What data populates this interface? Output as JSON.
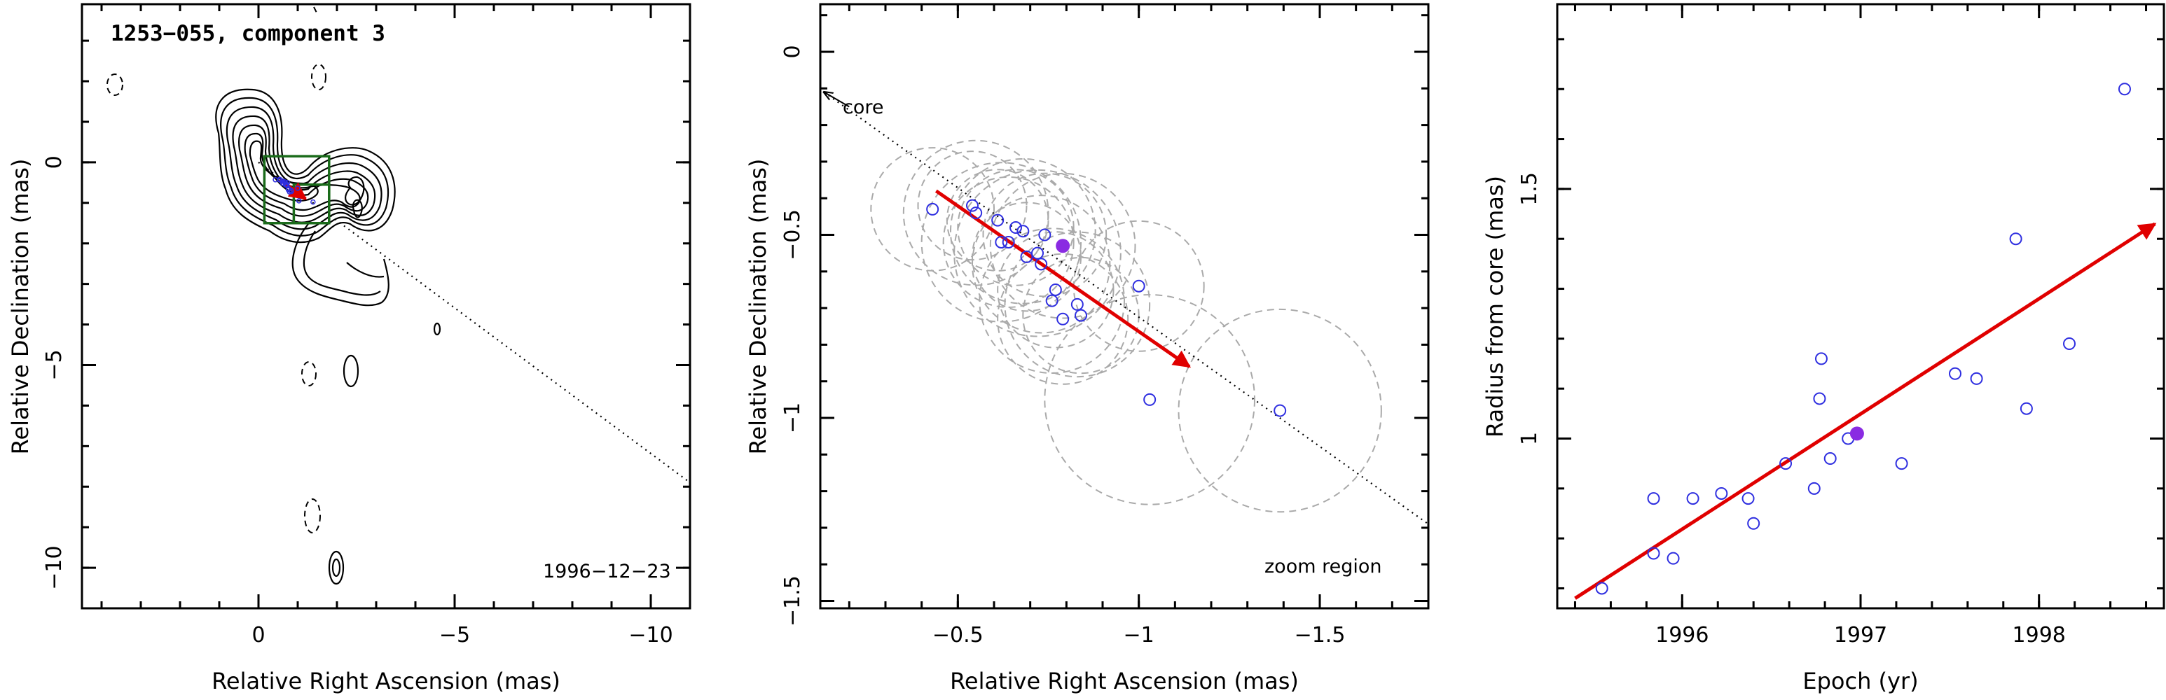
{
  "chart_data": [
    {
      "type": "contour",
      "title": "1253−055, component 3",
      "epoch_label": "1996−12−23",
      "xlabel": "Relative Right Ascension (mas)",
      "ylabel": "Relative Declination (mas)",
      "xlim": [
        4.5,
        -11
      ],
      "ylim": [
        -11,
        3.9
      ],
      "xticks": [
        0,
        -5,
        -10
      ],
      "xtick_labels": [
        "0",
        "−5",
        "−10"
      ],
      "yticks": [
        -10,
        -5,
        0
      ],
      "ytick_labels": [
        "−10",
        "−5",
        "0"
      ],
      "jet_direction_line": {
        "from": [
          0,
          0
        ],
        "to": [
          -11,
          -7.9
        ]
      },
      "component_track": {
        "from": [
          -0.55,
          -0.43
        ],
        "to": [
          -1.2,
          -0.9
        ]
      },
      "zoom_boxes": [
        {
          "x": [
            -0.15,
            -1.8
          ],
          "y": [
            0.15,
            -1.5
          ]
        },
        {
          "x": [
            -0.9,
            -1.8
          ],
          "y": [
            -0.55,
            -1.5
          ]
        }
      ]
    },
    {
      "type": "scatter",
      "xlabel": "Relative Right Ascension (mas)",
      "ylabel": "Relative Declination (mas)",
      "xlim": [
        -0.12,
        -1.8
      ],
      "ylim": [
        -1.52,
        0.13
      ],
      "xticks": [
        -0.5,
        -1,
        -1.5
      ],
      "xtick_labels": [
        "−0.5",
        "−1",
        "−1.5"
      ],
      "yticks": [
        -1.5,
        -1,
        -0.5,
        0
      ],
      "ytick_labels": [
        "−1.5",
        "−1",
        "−0.5",
        "0"
      ],
      "annotations": {
        "core": "core",
        "zoom": "zoom region"
      },
      "core_arrow": {
        "from": [
          -0.2,
          -0.15
        ],
        "to": [
          -0.13,
          -0.11
        ]
      },
      "direction_line": {
        "from": [
          -0.13,
          -0.11
        ],
        "to": [
          -1.8,
          -1.29
        ]
      },
      "motion_arrow": {
        "from": [
          -0.44,
          -0.38
        ],
        "to": [
          -1.14,
          -0.86
        ]
      },
      "points": [
        {
          "x": -0.43,
          "y": -0.43
        },
        {
          "x": -0.54,
          "y": -0.42
        },
        {
          "x": -0.55,
          "y": -0.44
        },
        {
          "x": -0.61,
          "y": -0.46
        },
        {
          "x": -0.62,
          "y": -0.52
        },
        {
          "x": -0.64,
          "y": -0.52
        },
        {
          "x": -0.66,
          "y": -0.48
        },
        {
          "x": -0.68,
          "y": -0.49
        },
        {
          "x": -0.69,
          "y": -0.56
        },
        {
          "x": -0.72,
          "y": -0.55
        },
        {
          "x": -0.73,
          "y": -0.58
        },
        {
          "x": -0.74,
          "y": -0.5
        },
        {
          "x": -0.76,
          "y": -0.68
        },
        {
          "x": -0.77,
          "y": -0.65
        },
        {
          "x": -0.79,
          "y": -0.73
        },
        {
          "x": -0.83,
          "y": -0.69
        },
        {
          "x": -0.84,
          "y": -0.72
        },
        {
          "x": -1.0,
          "y": -0.64
        },
        {
          "x": -1.03,
          "y": -0.95
        },
        {
          "x": -1.39,
          "y": -0.98
        }
      ],
      "highlight_point": {
        "x": -0.79,
        "y": -0.53
      },
      "error_circles": [
        {
          "x": -0.43,
          "y": -0.43,
          "r": 0.17
        },
        {
          "x": -0.54,
          "y": -0.42,
          "r": 0.15
        },
        {
          "x": -0.55,
          "y": -0.44,
          "r": 0.2
        },
        {
          "x": -0.61,
          "y": -0.46,
          "r": 0.14
        },
        {
          "x": -0.62,
          "y": -0.52,
          "r": 0.22
        },
        {
          "x": -0.64,
          "y": -0.52,
          "r": 0.18
        },
        {
          "x": -0.66,
          "y": -0.48,
          "r": 0.16
        },
        {
          "x": -0.68,
          "y": -0.49,
          "r": 0.2
        },
        {
          "x": -0.69,
          "y": -0.56,
          "r": 0.15
        },
        {
          "x": -0.72,
          "y": -0.55,
          "r": 0.23
        },
        {
          "x": -0.73,
          "y": -0.58,
          "r": 0.19
        },
        {
          "x": -0.74,
          "y": -0.5,
          "r": 0.17
        },
        {
          "x": -0.76,
          "y": -0.68,
          "r": 0.2
        },
        {
          "x": -0.77,
          "y": -0.65,
          "r": 0.16
        },
        {
          "x": -0.79,
          "y": -0.73,
          "r": 0.18
        },
        {
          "x": -0.83,
          "y": -0.69,
          "r": 0.2
        },
        {
          "x": -0.84,
          "y": -0.72,
          "r": 0.16
        },
        {
          "x": -1.0,
          "y": -0.64,
          "r": 0.18
        },
        {
          "x": -1.03,
          "y": -0.95,
          "r": 0.29
        },
        {
          "x": -1.39,
          "y": -0.98,
          "r": 0.28
        },
        {
          "x": -0.79,
          "y": -0.53,
          "r": 0.2
        }
      ]
    },
    {
      "type": "scatter",
      "xlabel": "Epoch (yr)",
      "ylabel": "Radius from core (mas)",
      "xlim": [
        1995.3,
        1998.7
      ],
      "ylim": [
        0.66,
        1.87
      ],
      "xticks": [
        1996,
        1997,
        1998
      ],
      "xtick_labels": [
        "1996",
        "1997",
        "1998"
      ],
      "yticks": [
        1,
        1.5
      ],
      "ytick_labels": [
        "1",
        "1.5"
      ],
      "fit_arrow": {
        "from": [
          1995.4,
          0.68
        ],
        "to": [
          1998.65,
          1.43
        ]
      },
      "points": [
        {
          "x": 1995.55,
          "y": 0.7
        },
        {
          "x": 1995.84,
          "y": 0.88
        },
        {
          "x": 1995.84,
          "y": 0.77
        },
        {
          "x": 1995.95,
          "y": 0.76
        },
        {
          "x": 1996.06,
          "y": 0.88
        },
        {
          "x": 1996.22,
          "y": 0.89
        },
        {
          "x": 1996.37,
          "y": 0.88
        },
        {
          "x": 1996.4,
          "y": 0.83
        },
        {
          "x": 1996.58,
          "y": 0.95
        },
        {
          "x": 1996.74,
          "y": 0.9
        },
        {
          "x": 1996.77,
          "y": 1.08
        },
        {
          "x": 1996.78,
          "y": 1.16
        },
        {
          "x": 1996.83,
          "y": 0.96
        },
        {
          "x": 1996.93,
          "y": 1.0
        },
        {
          "x": 1997.23,
          "y": 0.95
        },
        {
          "x": 1997.53,
          "y": 1.13
        },
        {
          "x": 1997.65,
          "y": 1.12
        },
        {
          "x": 1997.87,
          "y": 1.4
        },
        {
          "x": 1997.93,
          "y": 1.06
        },
        {
          "x": 1998.17,
          "y": 1.19
        },
        {
          "x": 1998.48,
          "y": 1.7
        }
      ],
      "highlight_point": {
        "x": 1996.98,
        "y": 1.01
      }
    }
  ],
  "colors": {
    "points": "#2f2fe0",
    "highlight": "#8a2be2",
    "arrow": "#e00000",
    "zoom_box": "#1a6b1a",
    "circles": "#aaaaaa"
  }
}
